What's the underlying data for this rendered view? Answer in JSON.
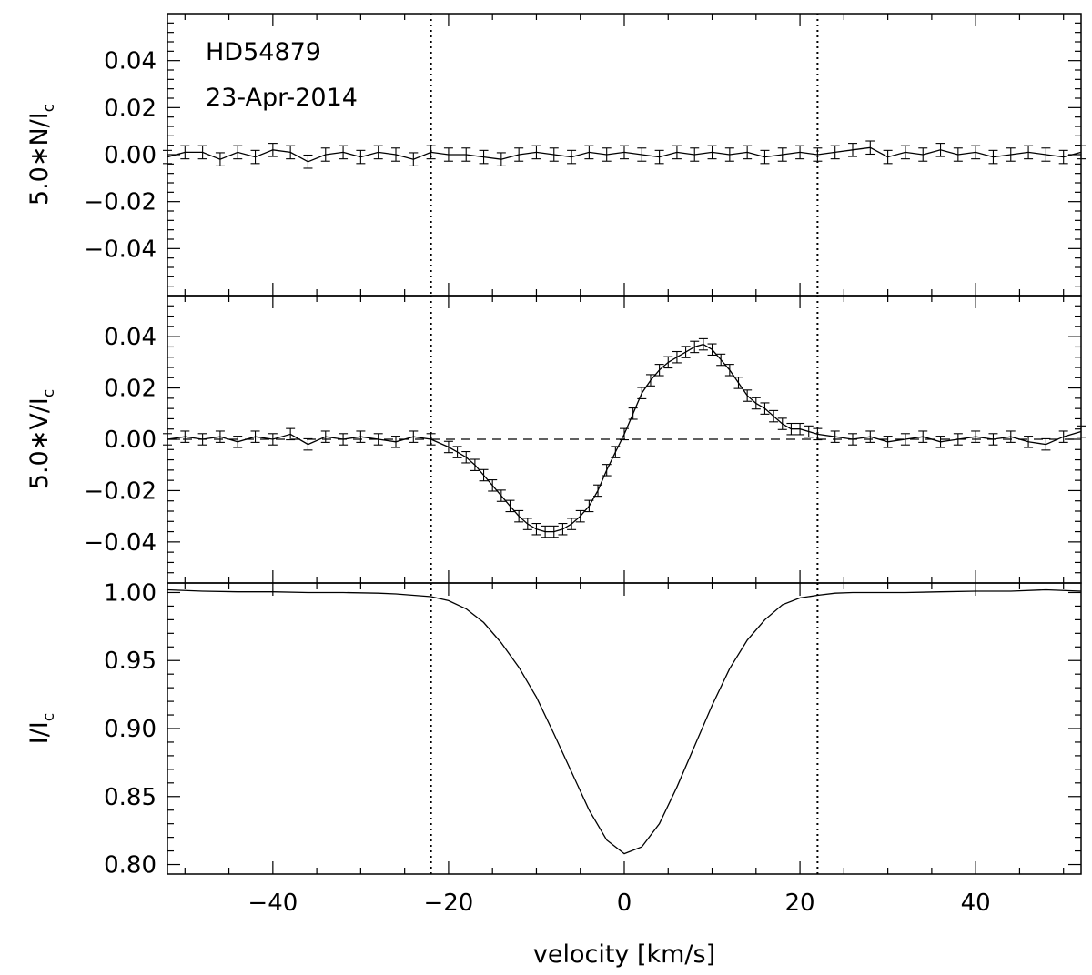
{
  "chart_data": {
    "type": "line",
    "star": "HD54879",
    "date": "23-Apr-2014",
    "xlabel": "velocity [km/s]",
    "xlim": [
      -52,
      52
    ],
    "x_ticks": [
      -40,
      -20,
      0,
      20,
      40
    ],
    "x_tick_labels": [
      "−40",
      "−20",
      "0",
      "20",
      "40"
    ],
    "vertical_markers": [
      -22,
      22
    ],
    "panels": [
      {
        "id": "null",
        "ylabel_main": "5.0∗N/I",
        "ylabel_sub": "c",
        "ylim": [
          -0.06,
          0.06
        ],
        "y_ticks": [
          -0.04,
          -0.02,
          0.0,
          0.02,
          0.04
        ],
        "y_tick_labels": [
          "−0.04",
          "−0.02",
          "0.00",
          "0.02",
          "0.04"
        ],
        "errorbars": true,
        "error": 0.0028,
        "x": [
          -52,
          -50,
          -48,
          -46,
          -44,
          -42,
          -40,
          -38,
          -36,
          -34,
          -32,
          -30,
          -28,
          -26,
          -24,
          -22,
          -20,
          -18,
          -16,
          -14,
          -12,
          -10,
          -8,
          -6,
          -4,
          -2,
          0,
          2,
          4,
          6,
          8,
          10,
          12,
          14,
          16,
          18,
          20,
          22,
          24,
          26,
          28,
          30,
          32,
          34,
          36,
          38,
          40,
          42,
          44,
          46,
          48,
          50,
          52
        ],
        "values": [
          -0.001,
          0.001,
          0.001,
          -0.002,
          0.001,
          -0.001,
          0.002,
          0.001,
          -0.003,
          0.0,
          0.001,
          -0.001,
          0.001,
          0.0,
          -0.002,
          0.001,
          0.0,
          0.0,
          -0.001,
          -0.002,
          0.0,
          0.001,
          0.0,
          -0.001,
          0.001,
          0.0,
          0.001,
          0.0,
          -0.001,
          0.001,
          0.0,
          0.001,
          0.0,
          0.001,
          -0.001,
          0.0,
          0.001,
          0.0,
          0.001,
          0.002,
          0.003,
          -0.001,
          0.001,
          0.0,
          0.002,
          0.0,
          0.001,
          -0.001,
          0.0,
          0.001,
          0.0,
          -0.001,
          0.001
        ]
      },
      {
        "id": "stokes-v",
        "ylabel_main": "5.0∗V/I",
        "ylabel_sub": "c",
        "ylim": [
          -0.056,
          0.056
        ],
        "y_ticks": [
          -0.04,
          -0.02,
          0.0,
          0.02,
          0.04
        ],
        "y_tick_labels": [
          "−0.04",
          "−0.02",
          "0.00",
          "0.02",
          "0.04"
        ],
        "errorbars": true,
        "error": 0.0022,
        "zero_line": "dashed",
        "x": [
          -52,
          -50,
          -48,
          -46,
          -44,
          -42,
          -40,
          -38,
          -36,
          -34,
          -32,
          -30,
          -28,
          -26,
          -24,
          -22,
          -20,
          -19,
          -18,
          -17,
          -16,
          -15,
          -14,
          -13,
          -12,
          -11,
          -10,
          -9,
          -8,
          -7,
          -6,
          -5,
          -4,
          -3,
          -2,
          -1,
          0,
          1,
          2,
          3,
          4,
          5,
          6,
          7,
          8,
          9,
          10,
          11,
          12,
          13,
          14,
          15,
          16,
          17,
          18,
          19,
          20,
          21,
          22,
          24,
          26,
          28,
          30,
          32,
          34,
          36,
          38,
          40,
          42,
          44,
          46,
          48,
          50,
          52
        ],
        "values": [
          0.0,
          0.001,
          0.0,
          0.001,
          -0.001,
          0.001,
          0.0,
          0.002,
          -0.002,
          0.001,
          0.0,
          0.001,
          0.0,
          -0.001,
          0.001,
          0.0,
          -0.003,
          -0.005,
          -0.007,
          -0.01,
          -0.014,
          -0.018,
          -0.022,
          -0.026,
          -0.03,
          -0.033,
          -0.035,
          -0.036,
          -0.036,
          -0.035,
          -0.033,
          -0.03,
          -0.026,
          -0.02,
          -0.012,
          -0.005,
          0.002,
          0.01,
          0.018,
          0.023,
          0.027,
          0.03,
          0.032,
          0.034,
          0.036,
          0.037,
          0.035,
          0.031,
          0.027,
          0.022,
          0.017,
          0.014,
          0.012,
          0.009,
          0.006,
          0.004,
          0.004,
          0.003,
          0.002,
          0.001,
          0.0,
          0.001,
          -0.001,
          0.0,
          0.001,
          -0.001,
          0.0,
          0.001,
          0.0,
          0.001,
          -0.001,
          -0.002,
          0.001,
          0.003
        ]
      },
      {
        "id": "intensity",
        "ylabel_main": "I/I",
        "ylabel_sub": "c",
        "ylim": [
          0.793,
          1.007
        ],
        "y_ticks": [
          0.8,
          0.85,
          0.9,
          0.95,
          1.0
        ],
        "y_tick_labels": [
          "0.80",
          "0.85",
          "0.90",
          "0.95",
          "1.00"
        ],
        "errorbars": false,
        "x": [
          -52,
          -48,
          -44,
          -40,
          -36,
          -32,
          -28,
          -26,
          -24,
          -22,
          -20,
          -18,
          -16,
          -14,
          -12,
          -10,
          -8,
          -6,
          -4,
          -2,
          0,
          2,
          4,
          6,
          8,
          10,
          12,
          14,
          16,
          18,
          20,
          22,
          24,
          26,
          28,
          32,
          36,
          40,
          44,
          48,
          52
        ],
        "values": [
          1.002,
          1.001,
          1.0005,
          1.0005,
          1.0,
          1.0,
          0.9995,
          0.999,
          0.998,
          0.997,
          0.994,
          0.988,
          0.978,
          0.963,
          0.945,
          0.923,
          0.896,
          0.868,
          0.84,
          0.818,
          0.808,
          0.813,
          0.83,
          0.857,
          0.887,
          0.917,
          0.944,
          0.965,
          0.98,
          0.991,
          0.996,
          0.998,
          0.9995,
          1.0,
          1.0,
          1.0,
          1.0005,
          1.001,
          1.001,
          1.002,
          1.001
        ]
      }
    ]
  }
}
